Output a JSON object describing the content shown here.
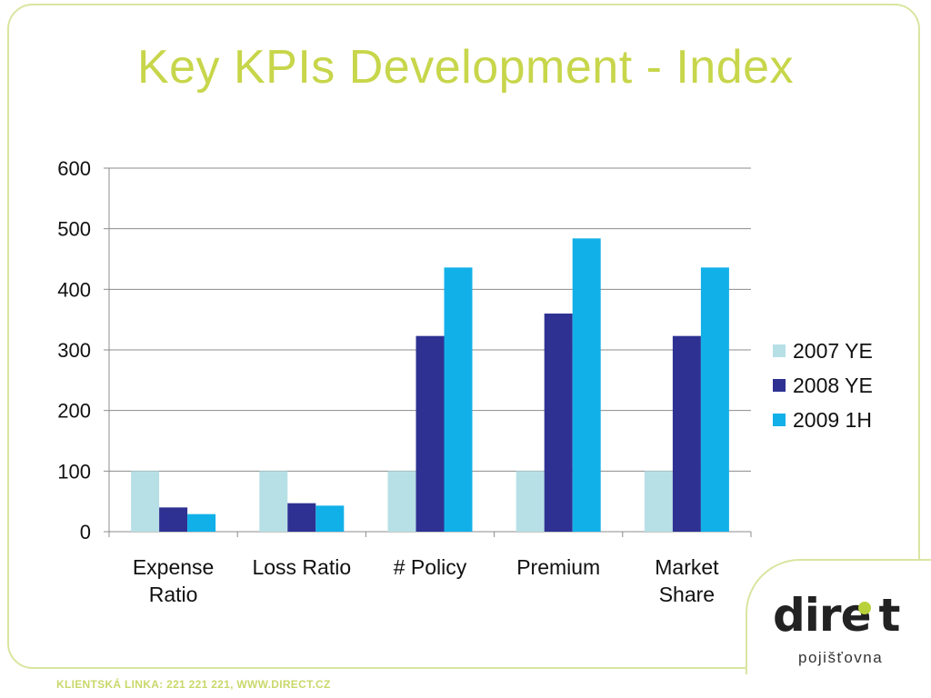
{
  "title": "Key KPIs Development - Index",
  "footer": "KLIENTSKÁ LINKA: 221 221 221, WWW.DIRECT.CZ",
  "logo": {
    "word": "dire t",
    "sub": "pojišťovna",
    "accent": "#b9d13a"
  },
  "colors": {
    "series_2007": "#b7e0e6",
    "series_2008": "#2e3192",
    "series_2009": "#12b0e8",
    "title": "#c7d64a",
    "frame": "#d8e6a0"
  },
  "chart_data": {
    "type": "bar",
    "title": "Key KPIs Development - Index",
    "categories": [
      [
        "Expense",
        "Ratio"
      ],
      [
        "Loss Ratio"
      ],
      [
        "# Policy"
      ],
      [
        "Premium"
      ],
      [
        "Market",
        "Share"
      ]
    ],
    "series": [
      {
        "name": "2007 YE",
        "values": [
          100,
          100,
          100,
          100,
          100
        ]
      },
      {
        "name": "2008 YE",
        "values": [
          40,
          47,
          323,
          360,
          323
        ]
      },
      {
        "name": "2009 1H",
        "values": [
          29,
          43,
          436,
          484,
          436
        ]
      }
    ],
    "ylim": [
      0,
      600
    ],
    "yticks": [
      0,
      100,
      200,
      300,
      400,
      500,
      600
    ],
    "grid": true,
    "legend": "right"
  }
}
